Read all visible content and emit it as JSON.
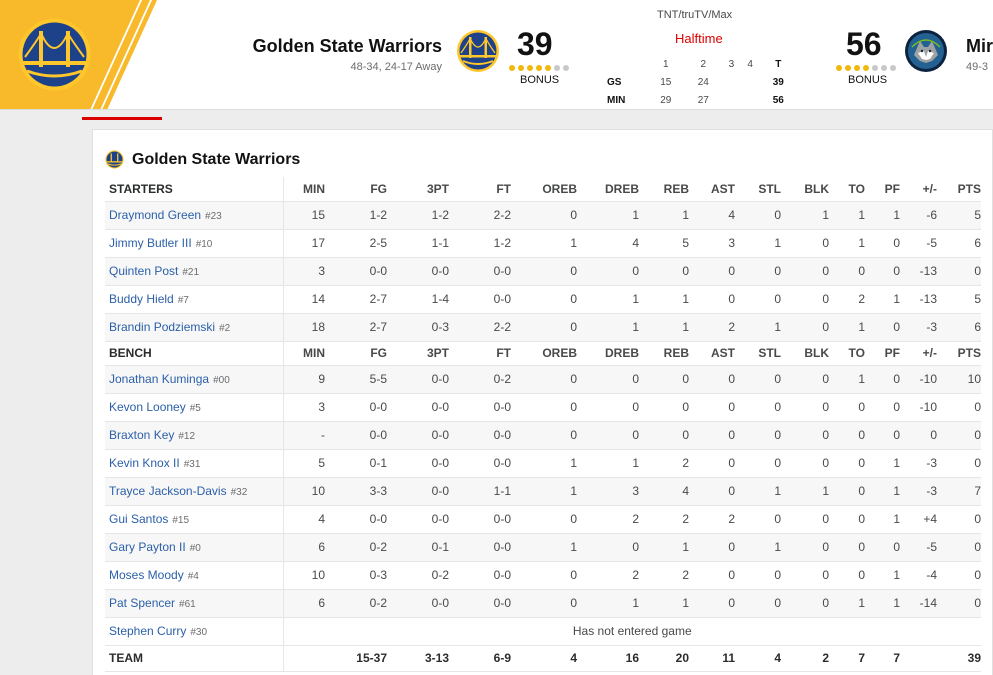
{
  "game": {
    "network": "TNT/truTV/Max",
    "status": "Halftime",
    "away": {
      "name": "Golden State Warriors",
      "record": "48-34, 24-17 Away",
      "score": "39",
      "bonus_label": "BONUS",
      "timeouts_remaining": 5,
      "timeouts_total": 7,
      "colors": {
        "primary": "#1d428a",
        "secondary": "#ffc72c"
      },
      "logo_icon": "warriors-bridge-logo"
    },
    "home": {
      "name_partial": "Mir",
      "record_partial": "49-3",
      "score": "56",
      "bonus_label": "BONUS",
      "timeouts_remaining": 4,
      "timeouts_total": 7,
      "logo_icon": "timberwolves-wolf-logo"
    },
    "linescore": {
      "headers": [
        "",
        "1",
        "2",
        "3",
        "4",
        "T"
      ],
      "rows": [
        {
          "team": "GS",
          "q": [
            "15",
            "24",
            "",
            ""
          ],
          "total": "39"
        },
        {
          "team": "MIN",
          "q": [
            "29",
            "27",
            "",
            ""
          ],
          "total": "56"
        }
      ]
    }
  },
  "boxscore": {
    "team_title": "Golden State Warriors",
    "stat_headers": [
      "MIN",
      "FG",
      "3PT",
      "FT",
      "OREB",
      "DREB",
      "REB",
      "AST",
      "STL",
      "BLK",
      "TO",
      "PF",
      "+/-",
      "PTS"
    ],
    "starters_label": "STARTERS",
    "bench_label": "BENCH",
    "starters": [
      {
        "name": "Draymond Green",
        "num": "#23",
        "stats": [
          "15",
          "1-2",
          "1-2",
          "2-2",
          "0",
          "1",
          "1",
          "4",
          "0",
          "1",
          "1",
          "1",
          "-6",
          "5"
        ]
      },
      {
        "name": "Jimmy Butler III",
        "num": "#10",
        "stats": [
          "17",
          "2-5",
          "1-1",
          "1-2",
          "1",
          "4",
          "5",
          "3",
          "1",
          "0",
          "1",
          "0",
          "-5",
          "6"
        ]
      },
      {
        "name": "Quinten Post",
        "num": "#21",
        "stats": [
          "3",
          "0-0",
          "0-0",
          "0-0",
          "0",
          "0",
          "0",
          "0",
          "0",
          "0",
          "0",
          "0",
          "-13",
          "0"
        ]
      },
      {
        "name": "Buddy Hield",
        "num": "#7",
        "stats": [
          "14",
          "2-7",
          "1-4",
          "0-0",
          "0",
          "1",
          "1",
          "0",
          "0",
          "0",
          "2",
          "1",
          "-13",
          "5"
        ]
      },
      {
        "name": "Brandin Podziemski",
        "num": "#2",
        "stats": [
          "18",
          "2-7",
          "0-3",
          "2-2",
          "0",
          "1",
          "1",
          "2",
          "1",
          "0",
          "1",
          "0",
          "-3",
          "6"
        ]
      }
    ],
    "bench": [
      {
        "name": "Jonathan Kuminga",
        "num": "#00",
        "stats": [
          "9",
          "5-5",
          "0-0",
          "0-2",
          "0",
          "0",
          "0",
          "0",
          "0",
          "0",
          "1",
          "0",
          "-10",
          "10"
        ]
      },
      {
        "name": "Kevon Looney",
        "num": "#5",
        "stats": [
          "3",
          "0-0",
          "0-0",
          "0-0",
          "0",
          "0",
          "0",
          "0",
          "0",
          "0",
          "0",
          "0",
          "-10",
          "0"
        ]
      },
      {
        "name": "Braxton Key",
        "num": "#12",
        "stats": [
          "-",
          "0-0",
          "0-0",
          "0-0",
          "0",
          "0",
          "0",
          "0",
          "0",
          "0",
          "0",
          "0",
          "0",
          "0"
        ]
      },
      {
        "name": "Kevin Knox II",
        "num": "#31",
        "stats": [
          "5",
          "0-1",
          "0-0",
          "0-0",
          "1",
          "1",
          "2",
          "0",
          "0",
          "0",
          "0",
          "1",
          "-3",
          "0"
        ]
      },
      {
        "name": "Trayce Jackson-Davis",
        "num": "#32",
        "stats": [
          "10",
          "3-3",
          "0-0",
          "1-1",
          "1",
          "3",
          "4",
          "0",
          "1",
          "1",
          "0",
          "1",
          "-3",
          "7"
        ]
      },
      {
        "name": "Gui Santos",
        "num": "#15",
        "stats": [
          "4",
          "0-0",
          "0-0",
          "0-0",
          "0",
          "2",
          "2",
          "2",
          "0",
          "0",
          "0",
          "1",
          "+4",
          "0"
        ]
      },
      {
        "name": "Gary Payton II",
        "num": "#0",
        "stats": [
          "6",
          "0-2",
          "0-1",
          "0-0",
          "1",
          "0",
          "1",
          "0",
          "1",
          "0",
          "0",
          "0",
          "-5",
          "0"
        ]
      },
      {
        "name": "Moses Moody",
        "num": "#4",
        "stats": [
          "10",
          "0-3",
          "0-2",
          "0-0",
          "0",
          "2",
          "2",
          "0",
          "0",
          "0",
          "0",
          "1",
          "-4",
          "0"
        ]
      },
      {
        "name": "Pat Spencer",
        "num": "#61",
        "stats": [
          "6",
          "0-2",
          "0-0",
          "0-0",
          "0",
          "1",
          "1",
          "0",
          "0",
          "0",
          "1",
          "1",
          "-14",
          "0"
        ]
      }
    ],
    "dnp": [
      {
        "name": "Stephen Curry",
        "num": "#30",
        "note": "Has not entered game"
      }
    ],
    "team_row": {
      "label": "TEAM",
      "stats": [
        "",
        "15-37",
        "3-13",
        "6-9",
        "4",
        "16",
        "20",
        "11",
        "4",
        "2",
        "7",
        "7",
        "",
        "39"
      ]
    }
  }
}
